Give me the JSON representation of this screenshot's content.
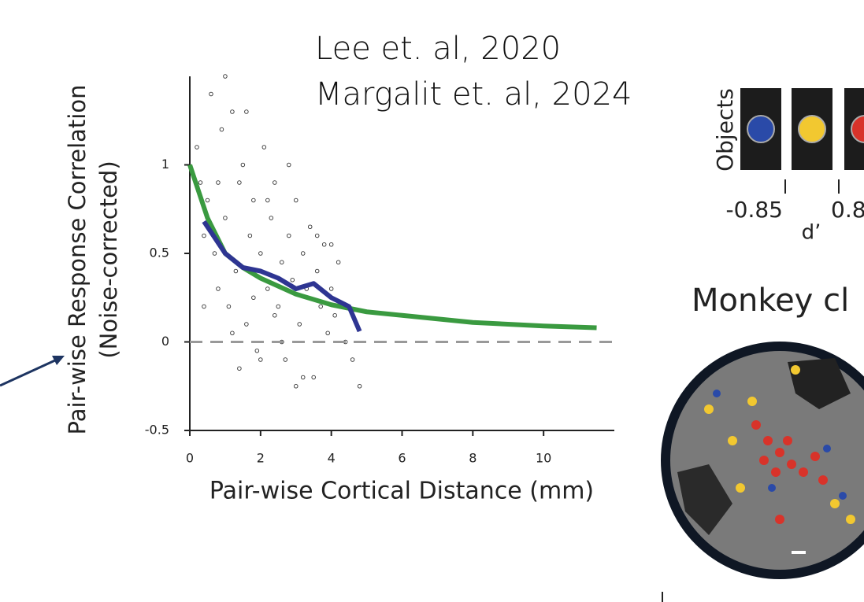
{
  "citations": [
    "Lee et. al, 2020",
    "Margalit et. al, 2024"
  ],
  "chart_data": {
    "type": "scatter",
    "ylabel": [
      "Pair-wise Response Correlation",
      "(Noise-corrected)"
    ],
    "xlabel": "Pair-wise Cortical Distance (mm)",
    "xlim": [
      0,
      12
    ],
    "ylim": [
      -0.5,
      1.5
    ],
    "xticks": [
      0,
      2,
      4,
      6,
      8,
      10
    ],
    "yticks": [
      -0.5,
      0,
      0.5,
      1
    ],
    "color": "#333333",
    "x": [
      0.2,
      0.3,
      0.4,
      0.5,
      0.6,
      0.7,
      0.8,
      0.9,
      1.0,
      1.1,
      1.2,
      1.3,
      1.4,
      1.5,
      1.6,
      1.7,
      1.8,
      1.9,
      2.0,
      2.1,
      2.2,
      2.3,
      2.4,
      2.5,
      2.6,
      2.7,
      2.8,
      2.9,
      3.0,
      3.1,
      3.2,
      3.3,
      3.4,
      3.5,
      3.6,
      3.7,
      3.8,
      3.9,
      4.0,
      4.1,
      4.2,
      4.4,
      4.6,
      4.8,
      0.4,
      0.8,
      1.2,
      1.6,
      2.0,
      2.4,
      2.8,
      3.2,
      3.6,
      4.0,
      1.0,
      1.4,
      1.8,
      2.2,
      2.6,
      3.0
    ],
    "y": [
      1.1,
      0.9,
      0.6,
      0.8,
      1.4,
      0.5,
      0.3,
      1.2,
      0.7,
      0.2,
      1.3,
      0.4,
      0.9,
      1.0,
      0.1,
      0.6,
      0.8,
      -0.05,
      0.5,
      1.1,
      0.3,
      0.7,
      0.9,
      0.2,
      0.45,
      -0.1,
      0.6,
      0.35,
      0.8,
      0.1,
      0.5,
      0.3,
      0.65,
      -0.2,
      0.4,
      0.2,
      0.55,
      0.05,
      0.3,
      0.15,
      0.45,
      0.0,
      -0.1,
      -0.25,
      0.2,
      0.9,
      0.05,
      1.3,
      -0.1,
      0.15,
      1.0,
      -0.2,
      0.6,
      0.55,
      1.5,
      -0.15,
      0.25,
      0.8,
      0.0,
      -0.25
    ],
    "lines": [
      {
        "color": "#3a9a40",
        "x": [
          0,
          0.5,
          1,
          1.5,
          2,
          3,
          4,
          5,
          6,
          8,
          10,
          11.5
        ],
        "y": [
          1.0,
          0.7,
          0.5,
          0.42,
          0.36,
          0.27,
          0.21,
          0.17,
          0.15,
          0.11,
          0.09,
          0.08
        ]
      },
      {
        "color": "#2e3592",
        "x": [
          0.4,
          1,
          1.5,
          2,
          2.5,
          3,
          3.5,
          4,
          4.5,
          4.8
        ],
        "y": [
          0.68,
          0.5,
          0.42,
          0.4,
          0.36,
          0.3,
          0.33,
          0.25,
          0.2,
          0.06
        ]
      }
    ],
    "reference_line": 0
  },
  "right_panel": {
    "objects_label": "Objects",
    "tick_labels": [
      "-0.85",
      "0.8"
    ],
    "axis_label": "d’",
    "heading": "Monkey cl"
  }
}
